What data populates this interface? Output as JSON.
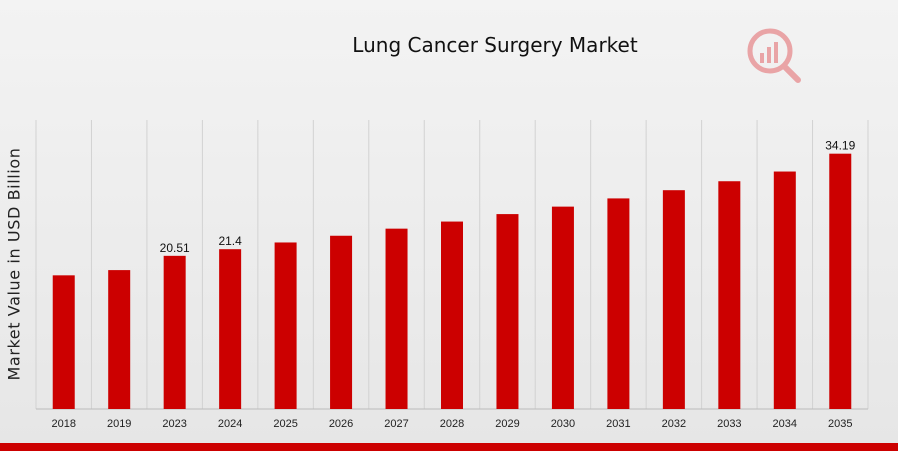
{
  "chart_data": {
    "type": "bar",
    "title": "Lung Cancer Surgery Market",
    "xlabel": "",
    "ylabel": "Market Value in USD Billion",
    "categories": [
      "2018",
      "2019",
      "2023",
      "2024",
      "2025",
      "2026",
      "2027",
      "2028",
      "2029",
      "2030",
      "2031",
      "2032",
      "2033",
      "2034",
      "2035"
    ],
    "series": [
      {
        "values": [
          17.9,
          18.6,
          20.51,
          21.4,
          22.3,
          23.2,
          24.15,
          25.1,
          26.1,
          27.1,
          28.2,
          29.3,
          30.5,
          31.8,
          34.19
        ]
      }
    ],
    "data_labels": [
      "",
      "",
      "20.51",
      "21.4",
      "",
      "",
      "",
      "",
      "",
      "",
      "",
      "",
      "",
      "",
      "34.19"
    ],
    "ylim": [
      0,
      38.7
    ],
    "grid": "vertical",
    "legend": "none",
    "bar_color": "#cc0000"
  },
  "colors": {
    "bar": "#cc0000",
    "grid": "#d2d2d2",
    "axis": "#bbbbbb",
    "footer_bar": "#cc0000",
    "logo": "#e8a6a8"
  },
  "logo": {
    "icon": "chart-magnifier-logo"
  }
}
